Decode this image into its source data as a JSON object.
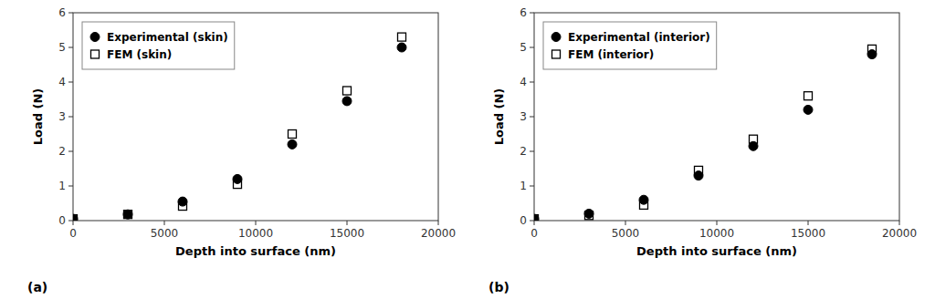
{
  "chart_data": [
    {
      "type": "scatter",
      "title": "(a)",
      "xlabel": "Depth into surface (nm)",
      "ylabel": "Load (N)",
      "x": [
        0,
        3000,
        6000,
        9000,
        12000,
        15000,
        18000
      ],
      "series": [
        {
          "name": "Experimental (skin)",
          "color": "#000000",
          "marker": "circle",
          "values": [
            0.05,
            0.18,
            0.55,
            1.2,
            2.2,
            3.45,
            5.0
          ]
        },
        {
          "name": "FEM (skin)",
          "color": "#000000",
          "marker": "square-open",
          "values": [
            0.05,
            0.18,
            0.42,
            1.05,
            2.5,
            3.75,
            5.3
          ]
        }
      ],
      "xlim": [
        0,
        20000
      ],
      "ylim": [
        0,
        6
      ],
      "xticks": [
        0,
        5000,
        10000,
        15000,
        20000
      ],
      "yticks": [
        0,
        1,
        2,
        3,
        4,
        5,
        6
      ],
      "grid": false,
      "legend": "upper-left"
    },
    {
      "type": "scatter",
      "title": "(b)",
      "xlabel": "Depth into surface (nm)",
      "ylabel": "Load (N)",
      "x": [
        0,
        3000,
        6000,
        9000,
        12000,
        15000,
        18500
      ],
      "series": [
        {
          "name": "Experimental (interior)",
          "color": "#000000",
          "marker": "circle",
          "values": [
            0.05,
            0.2,
            0.6,
            1.3,
            2.15,
            3.2,
            4.8
          ]
        },
        {
          "name": "FEM (interior)",
          "color": "#000000",
          "marker": "square-open",
          "values": [
            0.05,
            0.15,
            0.45,
            1.45,
            2.35,
            3.6,
            4.95
          ]
        }
      ],
      "xlim": [
        0,
        20000
      ],
      "ylim": [
        0,
        6
      ],
      "xticks": [
        0,
        5000,
        10000,
        15000,
        20000
      ],
      "yticks": [
        0,
        1,
        2,
        3,
        4,
        5,
        6
      ],
      "grid": false,
      "legend": "upper-left"
    }
  ]
}
